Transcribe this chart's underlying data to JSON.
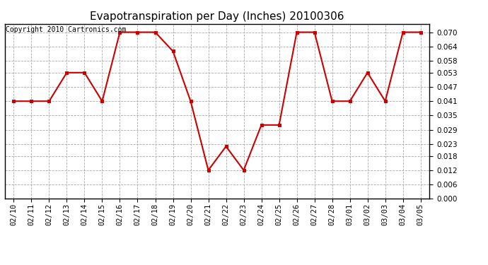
{
  "title": "Evapotranspiration per Day (Inches) 20100306",
  "copyright": "Copyright 2010 Cartronics.com",
  "x_labels": [
    "02/10",
    "02/11",
    "02/12",
    "02/13",
    "02/14",
    "02/15",
    "02/16",
    "02/17",
    "02/18",
    "02/19",
    "02/20",
    "02/21",
    "02/22",
    "02/23",
    "02/24",
    "02/25",
    "02/26",
    "02/27",
    "02/28",
    "03/01",
    "03/02",
    "03/03",
    "03/04",
    "03/05"
  ],
  "y_values": [
    0.041,
    0.041,
    0.041,
    0.053,
    0.053,
    0.041,
    0.07,
    0.07,
    0.07,
    0.062,
    0.041,
    0.012,
    0.022,
    0.012,
    0.031,
    0.031,
    0.07,
    0.07,
    0.041,
    0.041,
    0.053,
    0.041,
    0.07,
    0.07
  ],
  "line_color": "#cc0000",
  "marker": "s",
  "marker_size": 2.5,
  "marker_color": "#cc0000",
  "bg_color": "#ffffff",
  "grid_color": "#aaaaaa",
  "ylim": [
    0.0,
    0.0735
  ],
  "yticks": [
    0.0,
    0.006,
    0.012,
    0.018,
    0.023,
    0.029,
    0.035,
    0.041,
    0.047,
    0.053,
    0.058,
    0.064,
    0.07
  ],
  "title_fontsize": 11,
  "copyright_fontsize": 7,
  "tick_fontsize": 7.5,
  "ytick_fontsize": 7.5
}
